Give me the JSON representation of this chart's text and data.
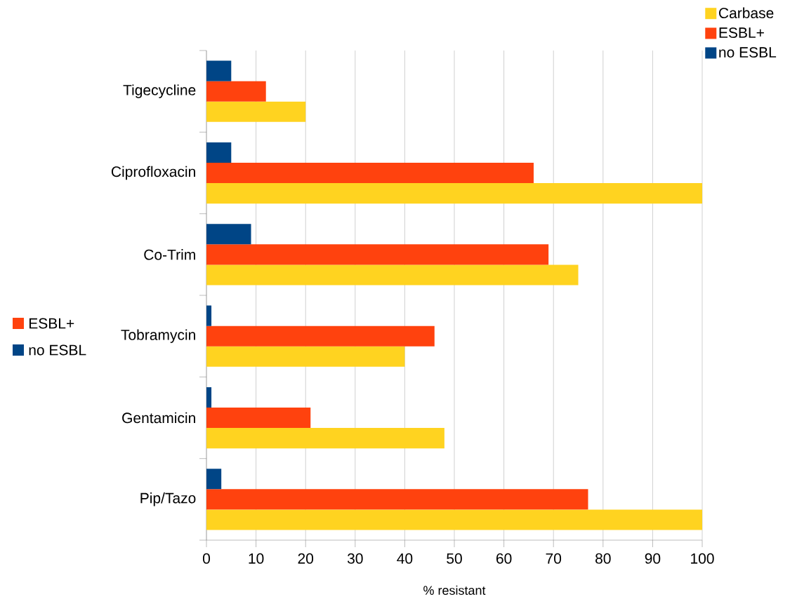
{
  "chart_data": {
    "type": "bar",
    "orientation": "horizontal",
    "xlabel": "% resistant",
    "categories": [
      "Tigecycline",
      "Ciprofloxacin",
      "Co-Trim",
      "Tobramycin",
      "Gentamicin",
      "Pip/Tazo"
    ],
    "series": [
      {
        "name": "Carbase",
        "color": "#ffd320",
        "values": [
          20,
          100,
          75,
          40,
          48,
          100
        ]
      },
      {
        "name": "ESBL+",
        "color": "#ff420e",
        "values": [
          12,
          66,
          69,
          46,
          21,
          77
        ]
      },
      {
        "name": "no ESBL",
        "color": "#004586",
        "values": [
          5,
          5,
          9,
          1,
          1,
          3
        ]
      }
    ],
    "xlim": [
      0,
      100
    ],
    "xticks": [
      0,
      10,
      20,
      30,
      40,
      50,
      60,
      70,
      80,
      90,
      100
    ],
    "grid": "x",
    "legend": "top right",
    "annotations": [
      "ESBL+",
      "no ESBL"
    ]
  }
}
